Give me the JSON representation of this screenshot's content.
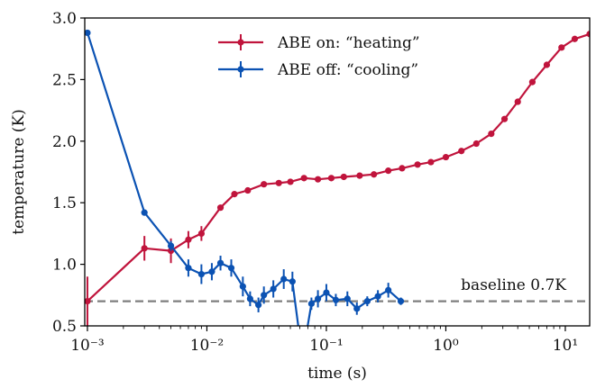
{
  "chart_data": {
    "type": "line",
    "title": "",
    "xlabel": "time (s)",
    "ylabel": "temperature (K)",
    "x_scale": "log",
    "xlim": [
      0.00095,
      16
    ],
    "ylim": [
      0.5,
      3.0
    ],
    "grid": false,
    "legend_position": "top-center",
    "x_tick_labels": [
      "10⁻³",
      "10⁻²",
      "10⁻¹",
      "10⁰",
      "10¹"
    ],
    "x_tick_values": [
      0.001,
      0.01,
      0.1,
      1,
      10
    ],
    "y_tick_labels": [
      "0.5",
      "1.0",
      "1.5",
      "2.0",
      "2.5",
      "3.0"
    ],
    "y_tick_values": [
      0.5,
      1.0,
      1.5,
      2.0,
      2.5,
      3.0
    ],
    "baseline": {
      "value": 0.7,
      "label": "baseline 0.7K",
      "color": "#7f7f7f"
    },
    "series": [
      {
        "name": "ABE on: “heating”",
        "color": "#c0143c",
        "x": [
          0.001,
          0.003,
          0.005,
          0.007,
          0.009,
          0.013,
          0.017,
          0.022,
          0.03,
          0.04,
          0.05,
          0.065,
          0.085,
          0.11,
          0.14,
          0.19,
          0.25,
          0.33,
          0.43,
          0.58,
          0.75,
          1.0,
          1.35,
          1.8,
          2.4,
          3.1,
          4.0,
          5.3,
          7.0,
          9.3,
          12.0,
          16.0
        ],
        "y": [
          0.7,
          1.13,
          1.11,
          1.2,
          1.25,
          1.46,
          1.57,
          1.6,
          1.65,
          1.66,
          1.67,
          1.7,
          1.69,
          1.7,
          1.71,
          1.72,
          1.73,
          1.76,
          1.78,
          1.81,
          1.83,
          1.87,
          1.92,
          1.98,
          2.06,
          2.18,
          2.32,
          2.48,
          2.62,
          2.76,
          2.83,
          2.87
        ],
        "err": [
          0.2,
          0.1,
          0.1,
          0.07,
          0.06,
          0.02,
          0.02,
          0.02,
          0.02,
          0.02,
          0.02,
          0.02,
          0.02,
          0.02,
          0.02,
          0.02,
          0.02,
          0.02,
          0.02,
          0.02,
          0.02,
          0.02,
          0.02,
          0.02,
          0.02,
          0.02,
          0.02,
          0.02,
          0.02,
          0.02,
          0.02,
          0.02
        ]
      },
      {
        "name": "ABE off: “cooling”",
        "color": "#0b52b3",
        "x": [
          0.001,
          0.003,
          0.005,
          0.007,
          0.009,
          0.011,
          0.013,
          0.016,
          0.02,
          0.023,
          0.027,
          0.03,
          0.036,
          0.044,
          0.052,
          0.06,
          0.067,
          0.075,
          0.085,
          0.1,
          0.12,
          0.15,
          0.18,
          0.22,
          0.27,
          0.33,
          0.42
        ],
        "y": [
          2.88,
          1.42,
          1.15,
          0.97,
          0.92,
          0.94,
          1.01,
          0.97,
          0.82,
          0.72,
          0.67,
          0.75,
          0.8,
          0.88,
          0.86,
          0.4,
          0.4,
          0.68,
          0.72,
          0.77,
          0.71,
          0.72,
          0.64,
          0.7,
          0.74,
          0.79,
          0.7
        ],
        "err": [
          0.02,
          0.02,
          0.04,
          0.07,
          0.08,
          0.07,
          0.06,
          0.07,
          0.08,
          0.06,
          0.06,
          0.07,
          0.07,
          0.08,
          0.08,
          0.0,
          0.0,
          0.05,
          0.07,
          0.07,
          0.05,
          0.06,
          0.05,
          0.04,
          0.05,
          0.06,
          0.03
        ]
      }
    ]
  }
}
